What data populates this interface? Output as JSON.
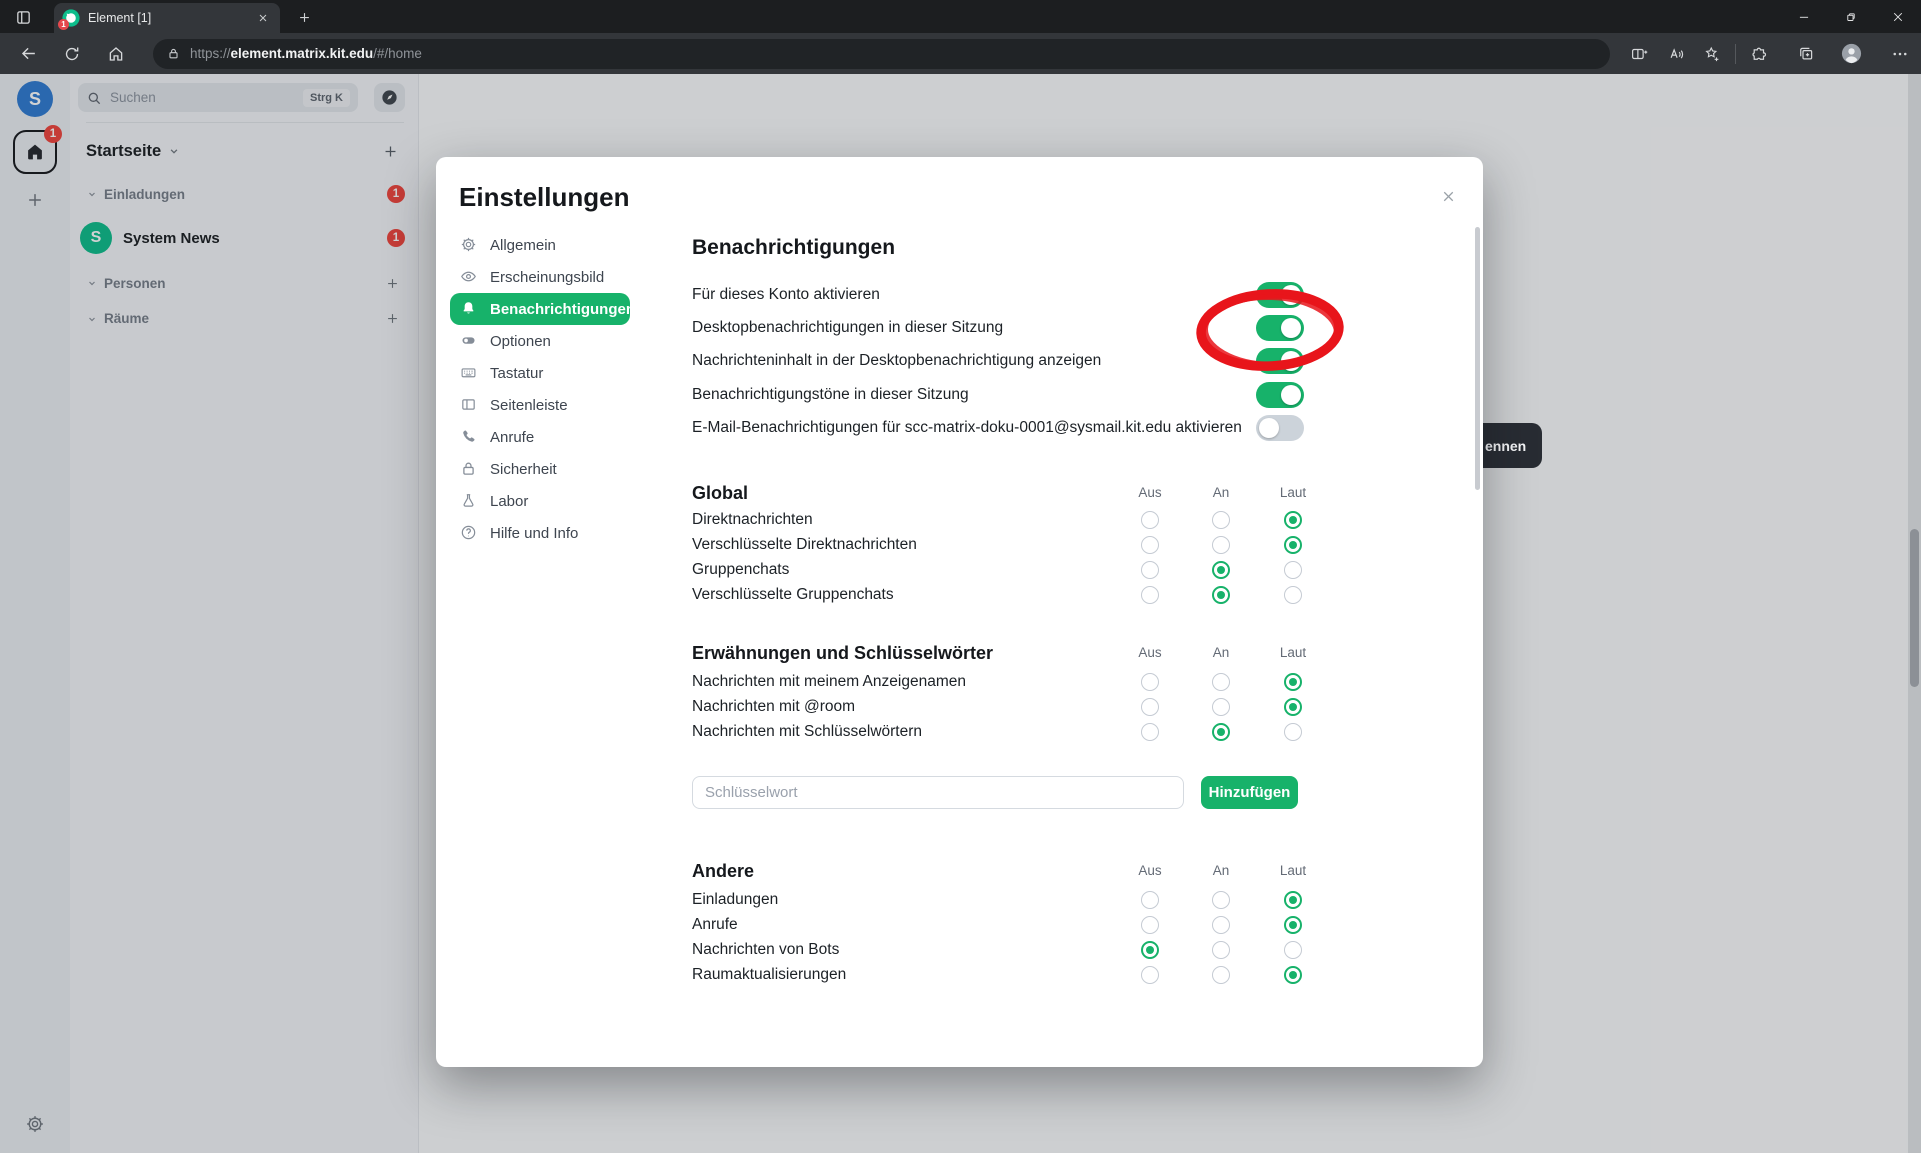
{
  "colors": {
    "accent": "#17b26a",
    "badge_red": "#f0443c",
    "annotation_red": "#e8151b",
    "room_avatar_green": "#0dbd8b"
  },
  "browser": {
    "tab": {
      "title": "Element [1]",
      "favicon_badge": "1"
    },
    "address": {
      "prefix": "https://",
      "host": "element.matrix.kit.edu",
      "path": "/#/home"
    }
  },
  "sidebar": {
    "user_avatar_letter": "S",
    "home_space_badge": "1",
    "search_placeholder": "Suchen",
    "search_shortcut": "Strg K",
    "space_name": "Startseite",
    "sections": [
      {
        "label": "Einladungen",
        "badge": "1",
        "has_add": false
      },
      {
        "label": "Personen",
        "badge": null,
        "has_add": true
      },
      {
        "label": "Räume",
        "badge": null,
        "has_add": true
      }
    ],
    "rooms": [
      {
        "name": "System News",
        "avatar_letter": "S",
        "badge": "1"
      }
    ]
  },
  "dialog": {
    "title": "Einstellungen",
    "nav": [
      {
        "label": "Allgemein",
        "icon": "gear",
        "active": false
      },
      {
        "label": "Erscheinungsbild",
        "icon": "eye",
        "active": false
      },
      {
        "label": "Benachrichtigungen",
        "icon": "bell",
        "active": true
      },
      {
        "label": "Optionen",
        "icon": "toggle",
        "active": false
      },
      {
        "label": "Tastatur",
        "icon": "keyboard",
        "active": false
      },
      {
        "label": "Seitenleiste",
        "icon": "sidebar",
        "active": false
      },
      {
        "label": "Anrufe",
        "icon": "phone",
        "active": false
      },
      {
        "label": "Sicherheit",
        "icon": "lock",
        "active": false
      },
      {
        "label": "Labor",
        "icon": "flask",
        "active": false
      },
      {
        "label": "Hilfe und Info",
        "icon": "question",
        "active": false
      }
    ],
    "heading": "Benachrichtigungen",
    "toggles": [
      {
        "label": "Für dieses Konto aktivieren",
        "on": true,
        "annotated": false
      },
      {
        "label": "Desktopbenachrichtigungen in dieser Sitzung",
        "on": true,
        "annotated": true
      },
      {
        "label": "Nachrichteninhalt in der Desktopbenachrichtigung anzeigen",
        "on": true,
        "annotated": false
      },
      {
        "label": "Benachrichtigungstöne in dieser Sitzung",
        "on": true,
        "annotated": false
      },
      {
        "label": "E-Mail-Benachrichtigungen für scc-matrix-doku-0001@sysmail.kit.edu aktivieren",
        "on": false,
        "annotated": false
      }
    ],
    "radio_headers": [
      "Aus",
      "An",
      "Laut"
    ],
    "sections": [
      {
        "title": "Global",
        "rows": [
          {
            "label": "Direktnachrichten",
            "selected": "Laut"
          },
          {
            "label": "Verschlüsselte Direktnachrichten",
            "selected": "Laut"
          },
          {
            "label": "Gruppenchats",
            "selected": "An"
          },
          {
            "label": "Verschlüsselte Gruppenchats",
            "selected": "An"
          }
        ]
      },
      {
        "title": "Erwähnungen und Schlüsselwörter",
        "rows": [
          {
            "label": "Nachrichten mit meinem Anzeigenamen",
            "selected": "Laut"
          },
          {
            "label": "Nachrichten mit @room",
            "selected": "Laut"
          },
          {
            "label": "Nachrichten mit Schlüsselwörtern",
            "selected": "An"
          }
        ]
      },
      {
        "title": "Andere",
        "rows": [
          {
            "label": "Einladungen",
            "selected": "Laut"
          },
          {
            "label": "Anrufe",
            "selected": "Laut"
          },
          {
            "label": "Nachrichten von Bots",
            "selected": "Aus"
          },
          {
            "label": "Raumaktualisierungen",
            "selected": "Laut"
          }
        ]
      }
    ],
    "keyword_placeholder": "Schlüsselwort",
    "add_button_label": "Hinzufügen"
  },
  "tooltip_fragment": "ennen"
}
